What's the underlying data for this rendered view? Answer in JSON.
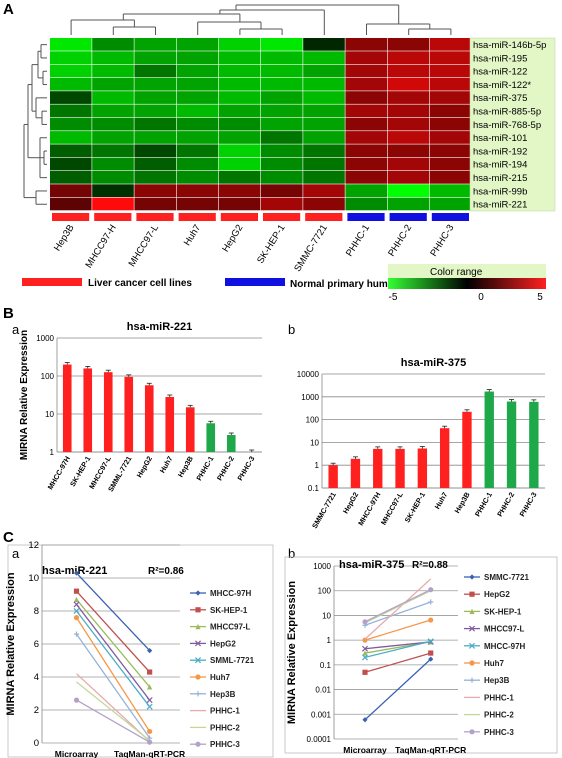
{
  "panels": {
    "A": "A",
    "B": "B",
    "Ba": "a",
    "Bb": "b",
    "C": "C",
    "Ca": "a",
    "Cb": "b"
  },
  "colors": {
    "red": "#ff2020",
    "green": "#1fa84a",
    "blue": "#1010e0",
    "label_bg": "#e2f6c6"
  },
  "heatmap": {
    "columns": [
      "Hep3B",
      "MHCC97-H",
      "MHCC97-L",
      "Huh7",
      "HepG2",
      "SK-HEP-1",
      "SMMC-7721",
      "PHHC-1",
      "PHHC-2",
      "PHHC-3"
    ],
    "column_groups": [
      "liver",
      "liver",
      "liver",
      "liver",
      "liver",
      "liver",
      "liver",
      "normal",
      "normal",
      "normal"
    ],
    "rows": [
      "hsa-miR-146b-5p",
      "hsa-miR-195",
      "hsa-miR-122",
      "hsa-miR-122*",
      "hsa-miR-375",
      "hsa-miR-885-5p",
      "hsa-miR-768-5p",
      "hsa-miR-101",
      "hsa-miR-192",
      "hsa-miR-194",
      "hsa-miR-215",
      "hsa-miR-99b",
      "hsa-miR-221"
    ],
    "values": [
      [
        -4.5,
        -2.5,
        -3.0,
        -3.0,
        -4.0,
        -4.5,
        -0.3,
        2.5,
        2.5,
        3.5
      ],
      [
        -4.0,
        -3.5,
        -3.0,
        -3.0,
        -3.5,
        -3.5,
        -3.5,
        3.0,
        3.5,
        3.5
      ],
      [
        -4.0,
        -3.5,
        -2.0,
        -3.0,
        -3.5,
        -3.5,
        -3.0,
        3.0,
        3.5,
        3.5
      ],
      [
        -3.5,
        -3.0,
        -3.0,
        -3.0,
        -3.5,
        -3.5,
        -3.5,
        3.0,
        4.0,
        3.5
      ],
      [
        -1.0,
        -3.5,
        -3.0,
        -3.0,
        -3.5,
        -3.0,
        -3.5,
        2.5,
        3.0,
        3.0
      ],
      [
        -2.0,
        -3.0,
        -3.0,
        -3.5,
        -3.0,
        -3.0,
        -3.0,
        3.0,
        3.0,
        2.5
      ],
      [
        -2.5,
        -2.5,
        -2.0,
        -2.5,
        -2.5,
        -3.0,
        -3.0,
        2.5,
        3.0,
        2.5
      ],
      [
        -3.5,
        -3.0,
        -3.0,
        -3.0,
        -3.0,
        -2.0,
        -3.0,
        3.0,
        3.5,
        3.0
      ],
      [
        -1.5,
        -2.0,
        -1.0,
        -2.0,
        -4.0,
        -2.5,
        -2.0,
        2.5,
        2.5,
        2.5
      ],
      [
        -1.0,
        -2.5,
        -1.5,
        -2.5,
        -4.0,
        -2.5,
        -2.0,
        2.5,
        3.0,
        2.5
      ],
      [
        -1.5,
        -2.5,
        -2.0,
        -2.5,
        -2.0,
        -2.5,
        -2.0,
        2.5,
        3.0,
        2.5
      ],
      [
        2.0,
        -0.5,
        2.5,
        2.5,
        2.5,
        2.0,
        3.0,
        -3.0,
        -5.0,
        -3.5
      ],
      [
        1.5,
        5.0,
        2.0,
        2.0,
        2.0,
        3.0,
        2.5,
        -2.5,
        -3.0,
        -3.0
      ]
    ],
    "legend_liver": "Liver cancer cell lines",
    "legend_normal": "Normal primary human hepatocytes",
    "color_range_title": "Color range",
    "color_range_ticks": [
      "-5",
      "0",
      "5"
    ],
    "color_range_min": -5,
    "color_range_max": 5
  },
  "chart_data": [
    {
      "type": "bar",
      "title": "hsa-miR-221",
      "ylabel": "MIRNA Relative Expression",
      "scale": "log",
      "ylim": [
        1,
        1000
      ],
      "yticks": [
        "1000",
        "100",
        "10",
        "1"
      ],
      "categories": [
        "MHCC-97H",
        "SK-HEP-1",
        "MHCC97-L",
        "SMML-7721",
        "HepG2",
        "Huh7",
        "Hep3B",
        "PHHC-1",
        "PHHC-2",
        "PHHC-3"
      ],
      "values": [
        200,
        158,
        126,
        95,
        57,
        28,
        15,
        5.7,
        2.8,
        1.0
      ],
      "groups": [
        "liver",
        "liver",
        "liver",
        "liver",
        "liver",
        "liver",
        "liver",
        "normal",
        "normal",
        "normal"
      ]
    },
    {
      "type": "bar",
      "title": "hsa-miR-375",
      "scale": "log",
      "ylim": [
        0.1,
        10000
      ],
      "yticks": [
        "10000",
        "1000",
        "100",
        "10",
        "1",
        "0.1"
      ],
      "categories": [
        "SMMC-7721",
        "HepG2",
        "MHCC-97H",
        "MHCC97-L",
        "SK-HEP-1",
        "Huh7",
        "Hep3B",
        "PHHC-1",
        "PHHC-2",
        "PHHC-3"
      ],
      "values": [
        1.0,
        1.9,
        5.2,
        5.2,
        5.4,
        42,
        220,
        1700,
        620,
        600
      ],
      "groups": [
        "liver",
        "liver",
        "liver",
        "liver",
        "liver",
        "liver",
        "liver",
        "normal",
        "normal",
        "normal"
      ]
    },
    {
      "type": "line",
      "title": "hsa-miR-221",
      "annotation": "R²=0.86",
      "ylabel": "MIRNA Relative Expression",
      "categories": [
        "Microarray",
        "TaqMan-qRT-PCR"
      ],
      "ylim": [
        0,
        12
      ],
      "yticks": [
        "0",
        "2",
        "4",
        "6",
        "8",
        "10",
        "12"
      ],
      "series": [
        {
          "name": "MHCC-97H",
          "color": "#3a62b0",
          "marker": "diamond",
          "values": [
            10.3,
            5.6
          ]
        },
        {
          "name": "SK-HEP-1",
          "color": "#c0504d",
          "marker": "square",
          "values": [
            9.2,
            4.3
          ]
        },
        {
          "name": "MHCC97-L",
          "color": "#9bbb59",
          "marker": "triangle",
          "values": [
            8.7,
            3.4
          ]
        },
        {
          "name": "HepG2",
          "color": "#7f5a9e",
          "marker": "x",
          "values": [
            8.4,
            2.6
          ]
        },
        {
          "name": "SMML-7721",
          "color": "#4bacc6",
          "marker": "x",
          "values": [
            8.0,
            2.2
          ]
        },
        {
          "name": "Huh7",
          "color": "#f79646",
          "marker": "circle",
          "values": [
            7.6,
            0.7
          ]
        },
        {
          "name": "Hep3B",
          "color": "#95b3d7",
          "marker": "plus",
          "values": [
            6.6,
            0.3
          ]
        },
        {
          "name": "PHHC-1",
          "color": "#e6a9a9",
          "marker": "none",
          "values": [
            4.2,
            0.1
          ]
        },
        {
          "name": "PHHC-2",
          "color": "#c4d79b",
          "marker": "none",
          "values": [
            3.7,
            0.15
          ]
        },
        {
          "name": "PHHC-3",
          "color": "#b3a2c7",
          "marker": "circle",
          "values": [
            2.6,
            0.05
          ]
        }
      ]
    },
    {
      "type": "line",
      "title": "hsa-miR-375",
      "annotation": "R²=0.88",
      "ylabel": "MIRNA Relative Expression",
      "scale": "log",
      "categories": [
        "Microarray",
        "TaqMan-qRT-PCR"
      ],
      "ylim": [
        0.0001,
        1000
      ],
      "yticks": [
        "1000",
        "100",
        "10",
        "1",
        "0.1",
        "0.01",
        "0.001",
        "0.0001"
      ],
      "series": [
        {
          "name": "SMMC-7721",
          "color": "#3a62b0",
          "marker": "diamond",
          "values": [
            0.0006,
            0.17
          ]
        },
        {
          "name": "HepG2",
          "color": "#c0504d",
          "marker": "square",
          "values": [
            0.05,
            0.3
          ]
        },
        {
          "name": "SK-HEP-1",
          "color": "#9bbb59",
          "marker": "triangle",
          "values": [
            0.3,
            0.85
          ]
        },
        {
          "name": "MHCC97-L",
          "color": "#7f5a9e",
          "marker": "x",
          "values": [
            0.45,
            0.85
          ]
        },
        {
          "name": "MHCC-97H",
          "color": "#4bacc6",
          "marker": "x",
          "values": [
            0.2,
            0.9
          ]
        },
        {
          "name": "Huh7",
          "color": "#f79646",
          "marker": "circle",
          "values": [
            1.0,
            6.5
          ]
        },
        {
          "name": "Hep3B",
          "color": "#95b3d7",
          "marker": "plus",
          "values": [
            4.0,
            35
          ]
        },
        {
          "name": "PHHC-1",
          "color": "#e6a9a9",
          "marker": "none",
          "values": [
            1.1,
            300
          ]
        },
        {
          "name": "PHHC-2",
          "color": "#c4d79b",
          "marker": "none",
          "values": [
            5.0,
            100
          ]
        },
        {
          "name": "PHHC-3",
          "color": "#b3a2c7",
          "marker": "circle",
          "values": [
            5.5,
            110
          ]
        }
      ]
    }
  ]
}
